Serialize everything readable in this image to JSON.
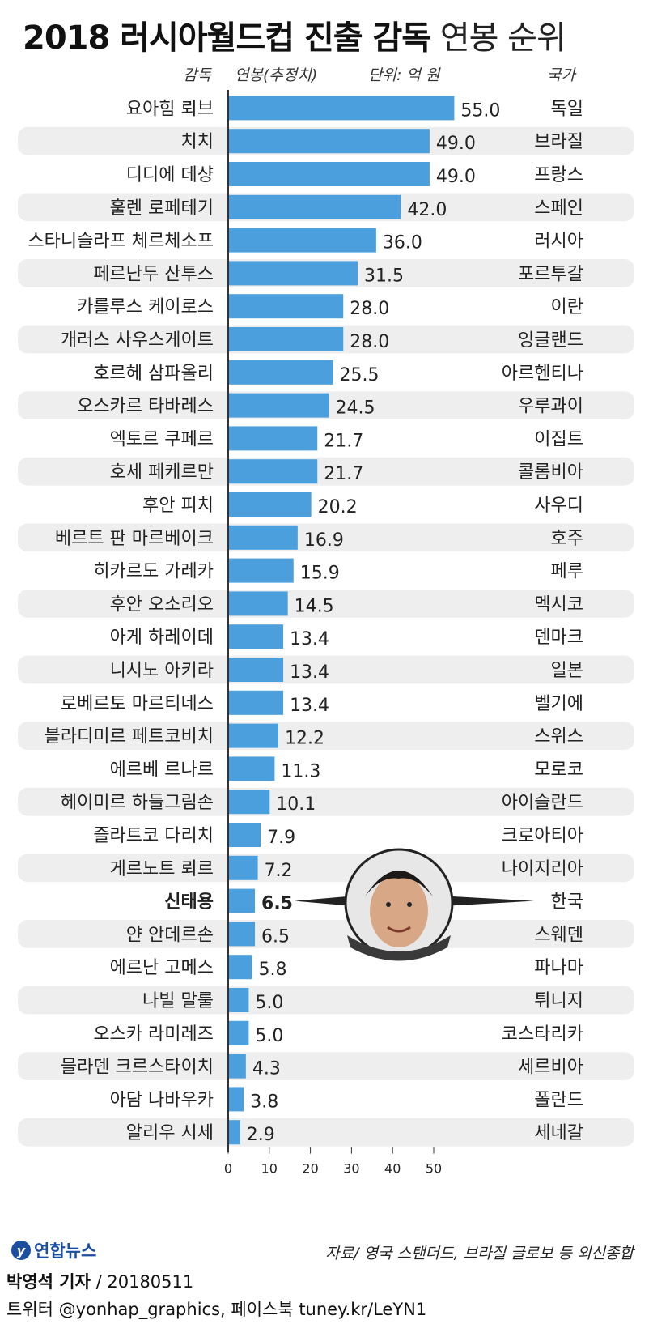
{
  "header": {
    "title_bold": "2018 러시아월드컵 진출 감독",
    "title_light": "연봉 순위",
    "col_coach": "감독",
    "col_salary": "연봉(추정치)",
    "col_unit": "단위: 억 원",
    "col_country": "국가"
  },
  "chart_data": {
    "type": "bar",
    "orientation": "horizontal",
    "unit": "억 원",
    "categories": [
      "요아힘 뢰브",
      "치치",
      "디디에 데샹",
      "훌렌 로페테기",
      "스타니슬라프 체르체소프",
      "페르난두 산투스",
      "카를루스 케이로스",
      "개러스 사우스게이트",
      "호르헤 삼파올리",
      "오스카르 타바레스",
      "엑토르 쿠페르",
      "호세 페케르만",
      "후안 피치",
      "베르트 판 마르베이크",
      "히카르도 가레카",
      "후안 오소리오",
      "아게 하레이데",
      "니시노 아키라",
      "로베르토 마르티네스",
      "블라디미르 페트코비치",
      "에르베 르나르",
      "헤이미르 하들그림손",
      "즐라트코 다리치",
      "게르노트 뢰르",
      "신태용",
      "얀 안데르손",
      "에르난 고메스",
      "나빌 말룰",
      "오스카 라미레즈",
      "믈라덴 크르스타이치",
      "아담 나바우카",
      "알리우 시세"
    ],
    "countries": [
      "독일",
      "브라질",
      "프랑스",
      "스페인",
      "러시아",
      "포르투갈",
      "이란",
      "잉글랜드",
      "아르헨티나",
      "우루과이",
      "이집트",
      "콜롬비아",
      "사우디",
      "호주",
      "페루",
      "멕시코",
      "덴마크",
      "일본",
      "벨기에",
      "스위스",
      "모로코",
      "아이슬란드",
      "크로아티아",
      "나이지리아",
      "한국",
      "스웨덴",
      "파나마",
      "튀니지",
      "코스타리카",
      "세르비아",
      "폴란드",
      "세네갈"
    ],
    "values": [
      55.0,
      49.0,
      49.0,
      42.0,
      36.0,
      31.5,
      28.0,
      28.0,
      25.5,
      24.5,
      21.7,
      21.7,
      20.2,
      16.9,
      15.9,
      14.5,
      13.4,
      13.4,
      13.4,
      12.2,
      11.3,
      10.1,
      7.9,
      7.2,
      6.5,
      6.5,
      5.8,
      5.0,
      5.0,
      4.3,
      3.8,
      2.9
    ],
    "value_labels": [
      "55.0",
      "49.0",
      "49.0",
      "42.0",
      "36.0",
      "31.5",
      "28.0",
      "28.0",
      "25.5",
      "24.5",
      "21.7",
      "21.7",
      "20.2",
      "16.9",
      "15.9",
      "14.5",
      "13.4",
      "13.4",
      "13.4",
      "12.2",
      "11.3",
      "10.1",
      "7.9",
      "7.2",
      "6.5",
      "6.5",
      "5.8",
      "5.0",
      "5.0",
      "4.3",
      "3.8",
      "2.9"
    ],
    "highlight_index": 24,
    "xticks": [
      0,
      10,
      20,
      30,
      40,
      50
    ],
    "xlim": [
      0,
      55
    ],
    "bar_color": "#4a9fdc",
    "stripe_color": "#eeeeee",
    "grid": false
  },
  "footer": {
    "logo_text": "연합뉴스",
    "source": "자료/ 영국 스탠더드, 브라질 글로보 등 외신종합",
    "reporter_name": "박영석 기자",
    "reporter_date": "/ 20180511",
    "social": "트위터 @yonhap_graphics, 페이스북 tuney.kr/LeYN1"
  }
}
